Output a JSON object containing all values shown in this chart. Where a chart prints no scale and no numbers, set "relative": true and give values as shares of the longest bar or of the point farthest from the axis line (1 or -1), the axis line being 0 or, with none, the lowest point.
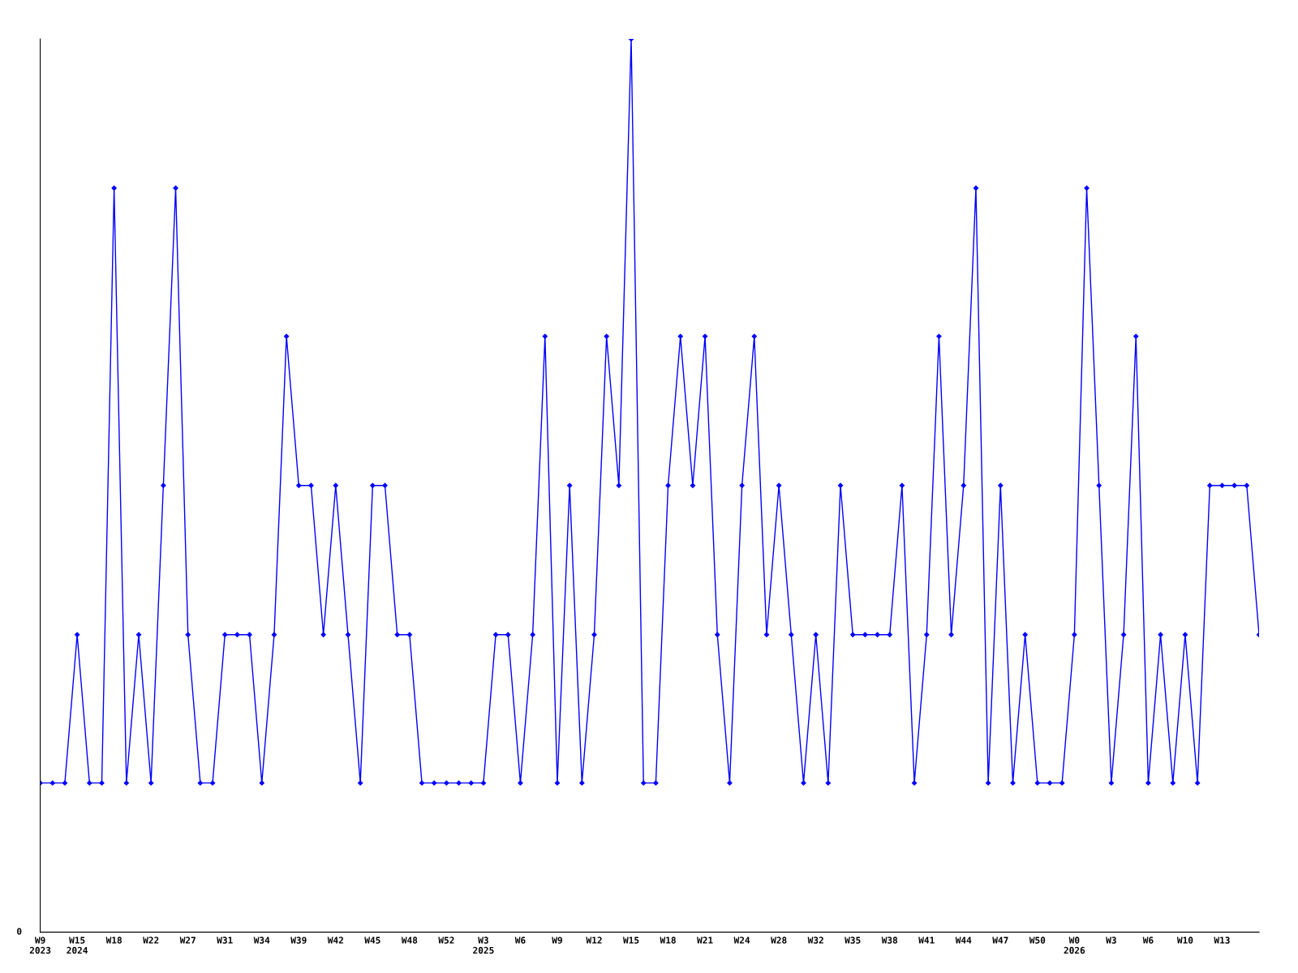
{
  "chart_data": {
    "type": "line",
    "relative": true,
    "marker": "diamond",
    "line_style": "solid",
    "grid": false,
    "legend": false,
    "annotations": [
      "0"
    ],
    "categories": [
      "W9\n2023",
      null,
      null,
      "W15\n2024",
      null,
      null,
      "W18",
      null,
      null,
      "W22",
      null,
      null,
      "W27",
      null,
      null,
      "W31",
      null,
      null,
      "W34",
      null,
      null,
      "W39",
      null,
      null,
      "W42",
      null,
      null,
      "W45",
      null,
      null,
      "W48",
      null,
      null,
      "W52",
      null,
      null,
      "W3\n2025",
      null,
      null,
      "W6",
      null,
      null,
      "W9",
      null,
      null,
      "W12",
      null,
      null,
      "W15",
      null,
      null,
      "W18",
      null,
      null,
      "W21",
      null,
      null,
      "W24",
      null,
      null,
      "W28",
      null,
      null,
      "W32",
      null,
      null,
      "W35",
      null,
      null,
      "W38",
      null,
      null,
      "W41",
      null,
      null,
      "W44",
      null,
      null,
      "W47",
      null,
      null,
      "W50",
      null,
      null,
      "W0\n2026",
      null,
      null,
      "W3",
      null,
      null,
      "W6",
      null,
      null,
      "W10",
      null,
      null,
      "W13",
      null,
      null,
      null
    ],
    "series": [
      {
        "color": "#0000ff",
        "values": [
          0.167,
          0.167,
          0.167,
          0.333,
          0.167,
          0.167,
          0.833,
          0.167,
          0.333,
          0.167,
          0.5,
          0.833,
          0.333,
          0.167,
          0.167,
          0.333,
          0.333,
          0.333,
          0.167,
          0.333,
          0.667,
          0.5,
          0.5,
          0.333,
          0.5,
          0.333,
          0.167,
          0.5,
          0.5,
          0.333,
          0.333,
          0.167,
          0.167,
          0.167,
          0.167,
          0.167,
          0.167,
          0.333,
          0.333,
          0.167,
          0.333,
          0.667,
          0.167,
          0.5,
          0.167,
          0.333,
          0.667,
          0.5,
          1,
          0.167,
          0.167,
          0.5,
          0.667,
          0.5,
          0.667,
          0.333,
          0.167,
          0.5,
          0.667,
          0.333,
          0.5,
          0.333,
          0.167,
          0.333,
          0.167,
          0.5,
          0.333,
          0.333,
          0.333,
          0.333,
          0.5,
          0.167,
          0.333,
          0.667,
          0.333,
          0.5,
          0.833,
          0.167,
          0.5,
          0.167,
          0.333,
          0.167,
          0.167,
          0.167,
          0.333,
          0.833,
          0.5,
          0.167,
          0.333,
          0.667,
          0.167,
          0.333,
          0.167,
          0.333,
          0.167,
          0.5,
          0.5,
          0.5,
          0.5,
          0.333
        ]
      }
    ]
  }
}
